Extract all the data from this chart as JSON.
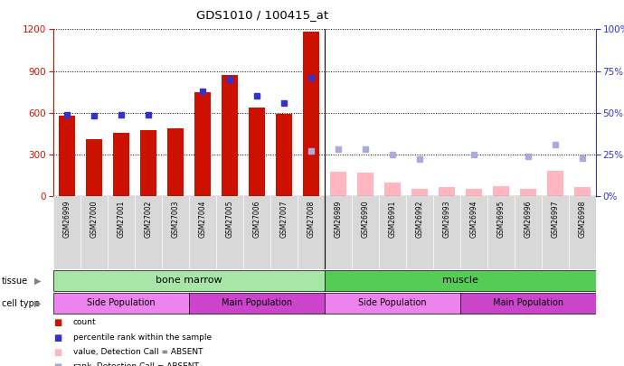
{
  "title": "GDS1010 / 100415_at",
  "samples": [
    "GSM26999",
    "GSM27000",
    "GSM27001",
    "GSM27002",
    "GSM27003",
    "GSM27004",
    "GSM27005",
    "GSM27006",
    "GSM27007",
    "GSM27008",
    "GSM26989",
    "GSM26990",
    "GSM26991",
    "GSM26992",
    "GSM26993",
    "GSM26994",
    "GSM26995",
    "GSM26996",
    "GSM26997",
    "GSM26998"
  ],
  "counts": [
    580,
    410,
    455,
    475,
    490,
    750,
    870,
    640,
    590,
    1185,
    null,
    null,
    null,
    null,
    null,
    null,
    null,
    null,
    null,
    null
  ],
  "ranks_pct": [
    49,
    48,
    49,
    49,
    null,
    63,
    70,
    60,
    56,
    71,
    null,
    null,
    null,
    null,
    null,
    null,
    null,
    null,
    null,
    null
  ],
  "absent_values": [
    null,
    null,
    null,
    null,
    null,
    null,
    null,
    null,
    null,
    null,
    175,
    170,
    95,
    55,
    65,
    50,
    75,
    55,
    185,
    65
  ],
  "absent_ranks_pct": [
    null,
    null,
    null,
    null,
    null,
    null,
    null,
    null,
    null,
    27,
    28,
    28,
    25,
    22,
    null,
    25,
    null,
    24,
    31,
    23
  ],
  "tissue_labels": [
    "bone marrow",
    "muscle"
  ],
  "cell_type_labels": [
    "Side Population",
    "Main Population",
    "Side Population",
    "Main Population"
  ],
  "tissue_color": "#90ee90",
  "tissue_color2": "#5cd65c",
  "cell_type_colors": [
    "#ee82ee",
    "#dd55dd",
    "#ee82ee",
    "#dd55dd"
  ],
  "bar_color": "#cc1100",
  "rank_color": "#3333cc",
  "absent_bar_color": "#ffb6c1",
  "absent_rank_color": "#aaaadd",
  "ylim_left": [
    0,
    1200
  ],
  "ylim_right": [
    0,
    100
  ],
  "yticks_left": [
    0,
    300,
    600,
    900,
    1200
  ],
  "yticks_right": [
    0,
    25,
    50,
    75,
    100
  ],
  "legend_items": [
    "count",
    "percentile rank within the sample",
    "value, Detection Call = ABSENT",
    "rank, Detection Call = ABSENT"
  ],
  "legend_colors": [
    "#cc1100",
    "#3333cc",
    "#ffb6c1",
    "#aaaadd"
  ]
}
